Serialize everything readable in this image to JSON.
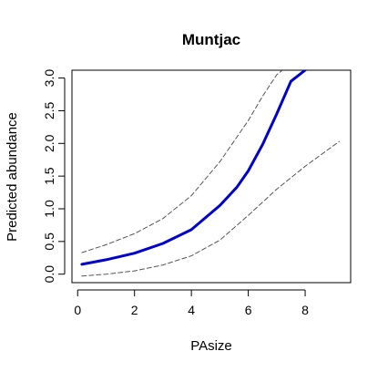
{
  "chart_data": {
    "type": "line",
    "title": "Muntjac",
    "xlabel": "PAsize",
    "ylabel": "Predicted abundance",
    "xlim": [
      -0.2,
      9.6
    ],
    "ylim": [
      -0.13,
      3.12
    ],
    "xticks": [
      "0",
      "2",
      "4",
      "6",
      "8"
    ],
    "yticks": [
      "0.0",
      "0.5",
      "1.0",
      "1.5",
      "2.0",
      "2.5",
      "3.0"
    ],
    "grid": false,
    "legend": "none",
    "series": [
      {
        "role": "fit",
        "style": "solid",
        "color": "#0000cc",
        "x": [
          0.15,
          1.0,
          2.0,
          3.0,
          4.0,
          5.0,
          5.6,
          6.0,
          6.5,
          7.0,
          7.5,
          8.0
        ],
        "y": [
          0.15,
          0.22,
          0.32,
          0.47,
          0.68,
          1.05,
          1.33,
          1.58,
          1.98,
          2.45,
          2.95,
          3.12
        ]
      },
      {
        "role": "upper-bound",
        "style": "dashed",
        "color": "#555555",
        "x": [
          0.15,
          1.0,
          2.0,
          3.0,
          4.0,
          5.0,
          6.0,
          6.5,
          7.0,
          7.2
        ],
        "y": [
          0.33,
          0.45,
          0.62,
          0.85,
          1.2,
          1.72,
          2.35,
          2.72,
          3.05,
          3.12
        ]
      },
      {
        "role": "lower-bound",
        "style": "dashed",
        "color": "#555555",
        "x": [
          0.15,
          1.0,
          2.0,
          3.0,
          4.0,
          5.0,
          6.0,
          7.0,
          8.0,
          9.2
        ],
        "y": [
          -0.03,
          0.0,
          0.05,
          0.14,
          0.28,
          0.52,
          0.9,
          1.3,
          1.65,
          2.03
        ]
      }
    ]
  }
}
